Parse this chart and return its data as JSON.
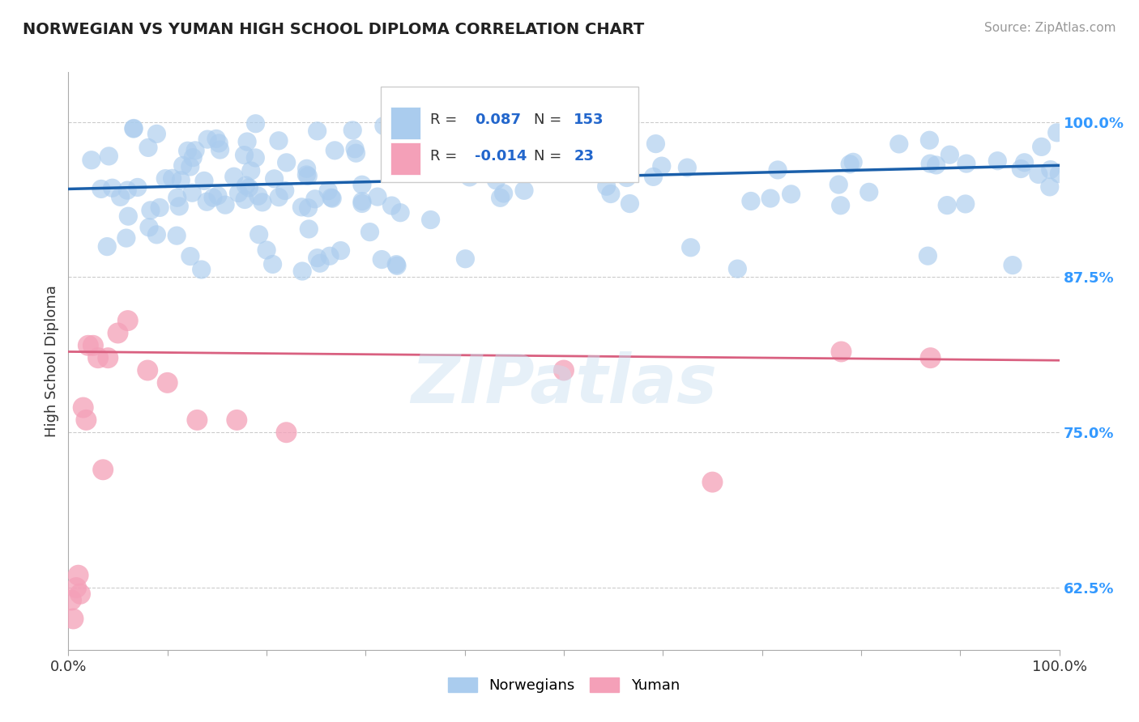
{
  "title": "NORWEGIAN VS YUMAN HIGH SCHOOL DIPLOMA CORRELATION CHART",
  "source": "Source: ZipAtlas.com",
  "ylabel": "High School Diploma",
  "background_color": "#ffffff",
  "grid_color": "#cccccc",
  "norwegian_color": "#aaccee",
  "norwegian_line_color": "#1a5faa",
  "yuman_color": "#f4a0b8",
  "yuman_line_color": "#d96080",
  "norwegian_R": 0.087,
  "norwegian_N": 153,
  "yuman_R": -0.014,
  "yuman_N": 23,
  "watermark": "ZIPatlas",
  "xlim": [
    0.0,
    1.0
  ],
  "ylim": [
    0.575,
    1.04
  ],
  "yticks": [
    0.625,
    0.75,
    0.875,
    1.0
  ],
  "ytick_labels": [
    "62.5%",
    "75.0%",
    "87.5%",
    "100.0%"
  ],
  "nor_line_x0": 0.0,
  "nor_line_y0": 0.946,
  "nor_line_x1": 1.0,
  "nor_line_y1": 0.965,
  "yum_line_x0": 0.0,
  "yum_line_y0": 0.815,
  "yum_line_x1": 1.0,
  "yum_line_y1": 0.808
}
